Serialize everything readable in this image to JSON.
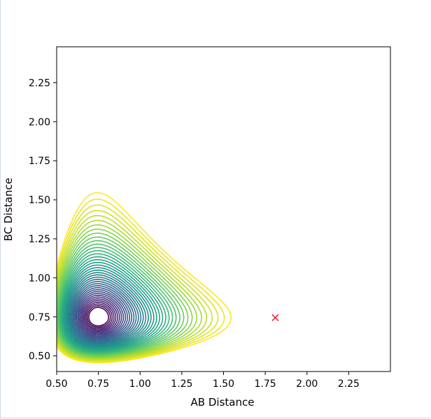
{
  "chart_data": {
    "type": "contour",
    "xlabel": "AB Distance",
    "ylabel": "BC Distance",
    "xlim": [
      0.5,
      2.5
    ],
    "ylim": [
      0.4,
      2.48
    ],
    "x_ticks": [
      "0.50",
      "0.75",
      "1.00",
      "1.25",
      "1.50",
      "1.75",
      "2.00",
      "2.25"
    ],
    "y_ticks": [
      "0.50",
      "0.75",
      "1.00",
      "1.25",
      "1.50",
      "1.75",
      "2.00",
      "2.25"
    ],
    "colormap": "viridis",
    "contour_levels": 40,
    "marker": {
      "symbol": "x",
      "x": 1.81,
      "y": 0.745,
      "color": "#e8303a"
    },
    "colors": {
      "low": "#440154",
      "mid": "#21918c",
      "high": "#fde725"
    }
  }
}
